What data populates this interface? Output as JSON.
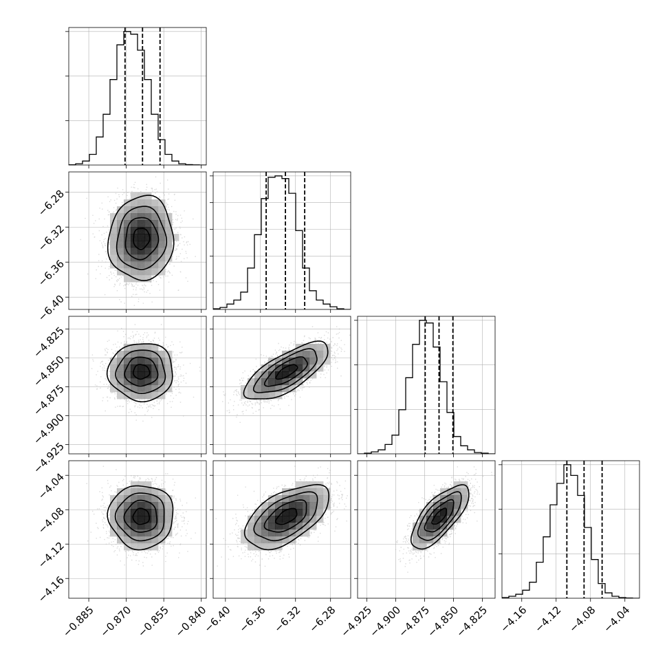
{
  "chart_data": {
    "type": "corner",
    "parameters": [
      {
        "range": [
          -0.893,
          -0.838
        ],
        "ticks": [
          -0.885,
          -0.87,
          -0.855,
          -0.84
        ],
        "tick_labels": [
          "−0.885",
          "−0.870",
          "−0.855",
          "−0.840"
        ],
        "quantiles": [
          -0.8705,
          -0.8635,
          -0.8565
        ],
        "hist": [
          0.2,
          1,
          3,
          8,
          21,
          38,
          64,
          90,
          100,
          98,
          86,
          64,
          38,
          19,
          8,
          3,
          1,
          0.3,
          0.1,
          0
        ],
        "hist_ticks": [
          100,
          66.6,
          33.3
        ]
      },
      {
        "range": [
          -6.414,
          -6.257
        ],
        "ticks": [
          -6.4,
          -6.36,
          -6.32,
          -6.28
        ],
        "tick_labels": [
          "−6.40",
          "−6.36",
          "−6.32",
          "−6.28"
        ],
        "quantiles": [
          -6.3535,
          -6.3315,
          -6.3095
        ],
        "hist": [
          0.5,
          1.5,
          4,
          7,
          13,
          31,
          56,
          83,
          99,
          100,
          98,
          87,
          59,
          31,
          14,
          7,
          4,
          2,
          0.5,
          0
        ],
        "hist_ticks": [
          100,
          80,
          60,
          40,
          20
        ]
      },
      {
        "range": [
          -4.933,
          -4.814
        ],
        "ticks": [
          -4.925,
          -4.9,
          -4.875,
          -4.85,
          -4.825
        ],
        "tick_labels": [
          "−4.925",
          "−4.900",
          "−4.875",
          "−4.850",
          "−4.825"
        ],
        "quantiles": [
          -4.8745,
          -4.8625,
          -4.8505
        ],
        "hist": [
          0,
          0.5,
          1.5,
          3,
          7,
          14,
          33,
          57,
          82,
          100,
          98,
          80,
          54,
          31,
          13,
          6,
          3,
          1,
          0.5,
          0
        ],
        "hist_ticks": [
          100,
          66.6,
          33.3
        ]
      },
      {
        "range": [
          -4.183,
          -4.023
        ],
        "ticks": [
          -4.16,
          -4.12,
          -4.08,
          -4.04
        ],
        "tick_labels": [
          "−4.16",
          "−4.12",
          "−4.08",
          "−4.04"
        ],
        "quantiles": [
          -4.1075,
          -4.0875,
          -4.0665
        ],
        "hist": [
          0.5,
          1.5,
          3,
          6,
          12,
          27,
          46,
          70,
          86,
          100,
          92,
          77,
          53,
          29,
          11,
          4,
          1.5,
          0.5,
          0.2,
          0
        ],
        "hist_ticks": [
          100,
          66.6,
          33.3
        ]
      }
    ],
    "pairs": [
      {
        "x": 0,
        "y": 1,
        "mean": [
          -0.864,
          -6.333
        ],
        "sd": [
          0.0065,
          0.024
        ],
        "rho": 0.05
      },
      {
        "x": 0,
        "y": 2,
        "mean": [
          -0.864,
          -4.862
        ],
        "sd": [
          0.0065,
          0.0125
        ],
        "rho": 0.0
      },
      {
        "x": 0,
        "y": 3,
        "mean": [
          -0.864,
          -4.088
        ],
        "sd": [
          0.0065,
          0.0185
        ],
        "rho": 0.0
      },
      {
        "x": 1,
        "y": 2,
        "mean": [
          -6.33,
          -4.862
        ],
        "sd": [
          0.024,
          0.0125
        ],
        "rho": 0.72
      },
      {
        "x": 1,
        "y": 3,
        "mean": [
          -6.33,
          -4.088
        ],
        "sd": [
          0.024,
          0.0185
        ],
        "rho": 0.55
      },
      {
        "x": 2,
        "y": 3,
        "mean": [
          -4.862,
          -4.088
        ],
        "sd": [
          0.0125,
          0.0185
        ],
        "rho": 0.72
      }
    ],
    "contour_levels": [
      0.5,
      1.0,
      1.5,
      2.0
    ],
    "grid": true,
    "colors": {
      "line": "#000000",
      "points": "#bbbbbb",
      "grid": "#b0b0b0"
    }
  }
}
